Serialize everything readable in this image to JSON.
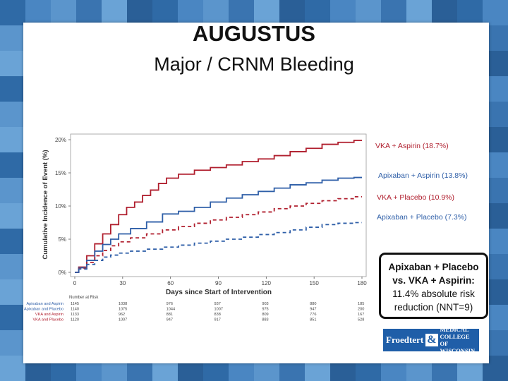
{
  "slide": {
    "title": "AUGUSTUS",
    "subtitle": "Major / CRNM Bleeding"
  },
  "callout": {
    "line1": "Apixaban + Placebo",
    "line2": "vs. VKA + Aspirin:",
    "line3": "11.4% absolute risk",
    "line4": "reduction (NNT=9)"
  },
  "logo": {
    "part1": "Froedtert",
    "amp": "&",
    "part2a": "Medical",
    "part2b": "College of",
    "part2c": "Wisconsin"
  },
  "colors": {
    "red": "#b01f2e",
    "blue": "#2f5fa8"
  },
  "chart_data": {
    "type": "line",
    "xlabel": "Days since Start of Intervention",
    "ylabel": "Cumulative Incidence of Event (%)",
    "xlim": [
      0,
      180
    ],
    "ylim": [
      0,
      20
    ],
    "x_ticks": [
      "0",
      "30",
      "60",
      "90",
      "120",
      "150",
      "180"
    ],
    "y_ticks": [
      "0%",
      "5%",
      "10%",
      "15%",
      "20%"
    ],
    "series": [
      {
        "name": "VKA + Aspirin (18.7%)",
        "color": "#b01f2e",
        "dash": false,
        "x": [
          0,
          5,
          10,
          15,
          20,
          25,
          30,
          35,
          40,
          45,
          50,
          55,
          60,
          70,
          80,
          90,
          100,
          110,
          120,
          130,
          140,
          150,
          160,
          170,
          180
        ],
        "y": [
          0,
          0.8,
          2.5,
          4.3,
          5.8,
          7.2,
          8.7,
          9.8,
          10.6,
          11.6,
          12.4,
          13.4,
          14.2,
          14.8,
          15.4,
          15.8,
          16.2,
          16.7,
          17.1,
          17.6,
          18.2,
          18.7,
          19.3,
          19.6,
          19.9
        ]
      },
      {
        "name": "Apixaban + Aspirin (13.8%)",
        "color": "#2f5fa8",
        "dash": false,
        "x": [
          0,
          5,
          10,
          15,
          20,
          25,
          30,
          40,
          50,
          60,
          70,
          80,
          90,
          100,
          110,
          120,
          130,
          140,
          150,
          160,
          170,
          180
        ],
        "y": [
          0,
          0.7,
          1.8,
          3.2,
          4.2,
          5.0,
          5.8,
          6.6,
          7.6,
          8.8,
          9.2,
          9.8,
          10.6,
          11.2,
          11.7,
          12.2,
          12.7,
          13.2,
          13.5,
          13.9,
          14.2,
          14.3
        ]
      },
      {
        "name": "VKA + Placebo (10.9%)",
        "color": "#b01f2e",
        "dash": true,
        "x": [
          0,
          5,
          10,
          15,
          20,
          25,
          30,
          40,
          50,
          60,
          70,
          80,
          90,
          100,
          110,
          120,
          130,
          140,
          150,
          160,
          170,
          180
        ],
        "y": [
          0,
          0.6,
          1.5,
          2.5,
          3.3,
          4.0,
          4.6,
          5.2,
          5.8,
          6.4,
          6.9,
          7.4,
          7.9,
          8.3,
          8.7,
          9.1,
          9.6,
          10.0,
          10.4,
          10.8,
          11.1,
          11.4
        ]
      },
      {
        "name": "Apixaban + Placebo (7.3%)",
        "color": "#2f5fa8",
        "dash": true,
        "x": [
          0,
          5,
          10,
          15,
          20,
          25,
          30,
          40,
          50,
          60,
          70,
          80,
          90,
          100,
          110,
          120,
          130,
          140,
          150,
          160,
          170,
          180
        ],
        "y": [
          0,
          0.5,
          1.2,
          1.8,
          2.3,
          2.6,
          2.9,
          3.2,
          3.5,
          3.8,
          4.1,
          4.4,
          4.7,
          5.0,
          5.3,
          5.7,
          6.0,
          6.4,
          6.8,
          7.2,
          7.4,
          7.5
        ]
      }
    ],
    "at_risk": {
      "heading": "Number at Risk",
      "rows": [
        {
          "label": "Apixaban and Aspirin",
          "color": "#2f5fa8",
          "values": [
            "1145",
            "1038",
            "976",
            "937",
            "903",
            "880",
            "185"
          ]
        },
        {
          "label": "Apixaban and Placebo",
          "color": "#2f5fa8",
          "values": [
            "1140",
            "1075",
            "1044",
            "1007",
            "975",
            "947",
            "200"
          ]
        },
        {
          "label": "VKA and Aspirin",
          "color": "#b01f2e",
          "values": [
            "1133",
            "962",
            "881",
            "838",
            "809",
            "776",
            "167"
          ]
        },
        {
          "label": "VKA and Placebo",
          "color": "#b01f2e",
          "values": [
            "1120",
            "1007",
            "947",
            "917",
            "883",
            "851",
            "528"
          ]
        }
      ]
    }
  }
}
